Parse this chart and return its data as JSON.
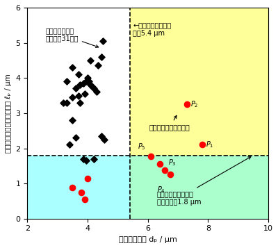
{
  "xlim": [
    2,
    10
  ],
  "ylim": [
    0,
    6
  ],
  "xticks": [
    2,
    4,
    6,
    8,
    10
  ],
  "yticks": [
    0,
    1,
    2,
    3,
    4,
    5,
    6
  ],
  "xlabel": "ボアの直径， dₚ / μm",
  "ylabel": "ボアから表面までの距離， ℓₚ / μm",
  "vline_x": 5.4,
  "hline_y": 1.8,
  "bg_topright_color": "#ffff99",
  "bg_bottomleft_color": "#aaffff",
  "bg_bottomright_color": "#aaffcc",
  "black_diamonds_x": [
    3.6,
    3.75,
    3.85,
    3.95,
    4.05,
    4.1,
    4.15,
    4.2,
    3.9,
    3.7,
    3.5,
    4.0,
    4.35,
    4.45,
    4.5,
    3.3,
    3.5,
    4.1,
    3.85,
    3.95,
    4.2,
    3.6,
    3.4,
    4.45,
    4.55,
    3.2,
    3.5,
    4.3,
    3.75,
    3.3,
    3.7
  ],
  "black_diamonds_y": [
    3.7,
    3.8,
    3.85,
    3.9,
    3.9,
    3.8,
    3.75,
    3.7,
    3.55,
    3.5,
    3.45,
    4.0,
    4.35,
    4.6,
    5.05,
    3.3,
    2.8,
    4.5,
    1.7,
    1.65,
    1.7,
    2.3,
    2.1,
    2.35,
    2.25,
    3.3,
    4.3,
    3.6,
    3.3,
    3.9,
    4.1
  ],
  "red_dots_x": [
    3.5,
    3.8,
    3.9,
    4.0,
    6.1,
    6.4,
    6.55,
    6.75,
    7.8
  ],
  "red_dots_y": [
    0.88,
    0.75,
    0.55,
    1.15,
    1.78,
    1.55,
    1.38,
    1.25,
    2.1
  ],
  "red_p2_x": 7.3,
  "red_p2_y": 3.25,
  "labeled_points": {
    "P1": [
      7.8,
      2.1
    ],
    "P2": [
      7.3,
      3.25
    ],
    "P3": [
      6.55,
      1.65
    ],
    "P4": [
      6.35,
      1.05
    ],
    "P5": [
      6.1,
      2.0
    ]
  },
  "point_color_red": "#ff0000",
  "point_color_black": "#000000"
}
